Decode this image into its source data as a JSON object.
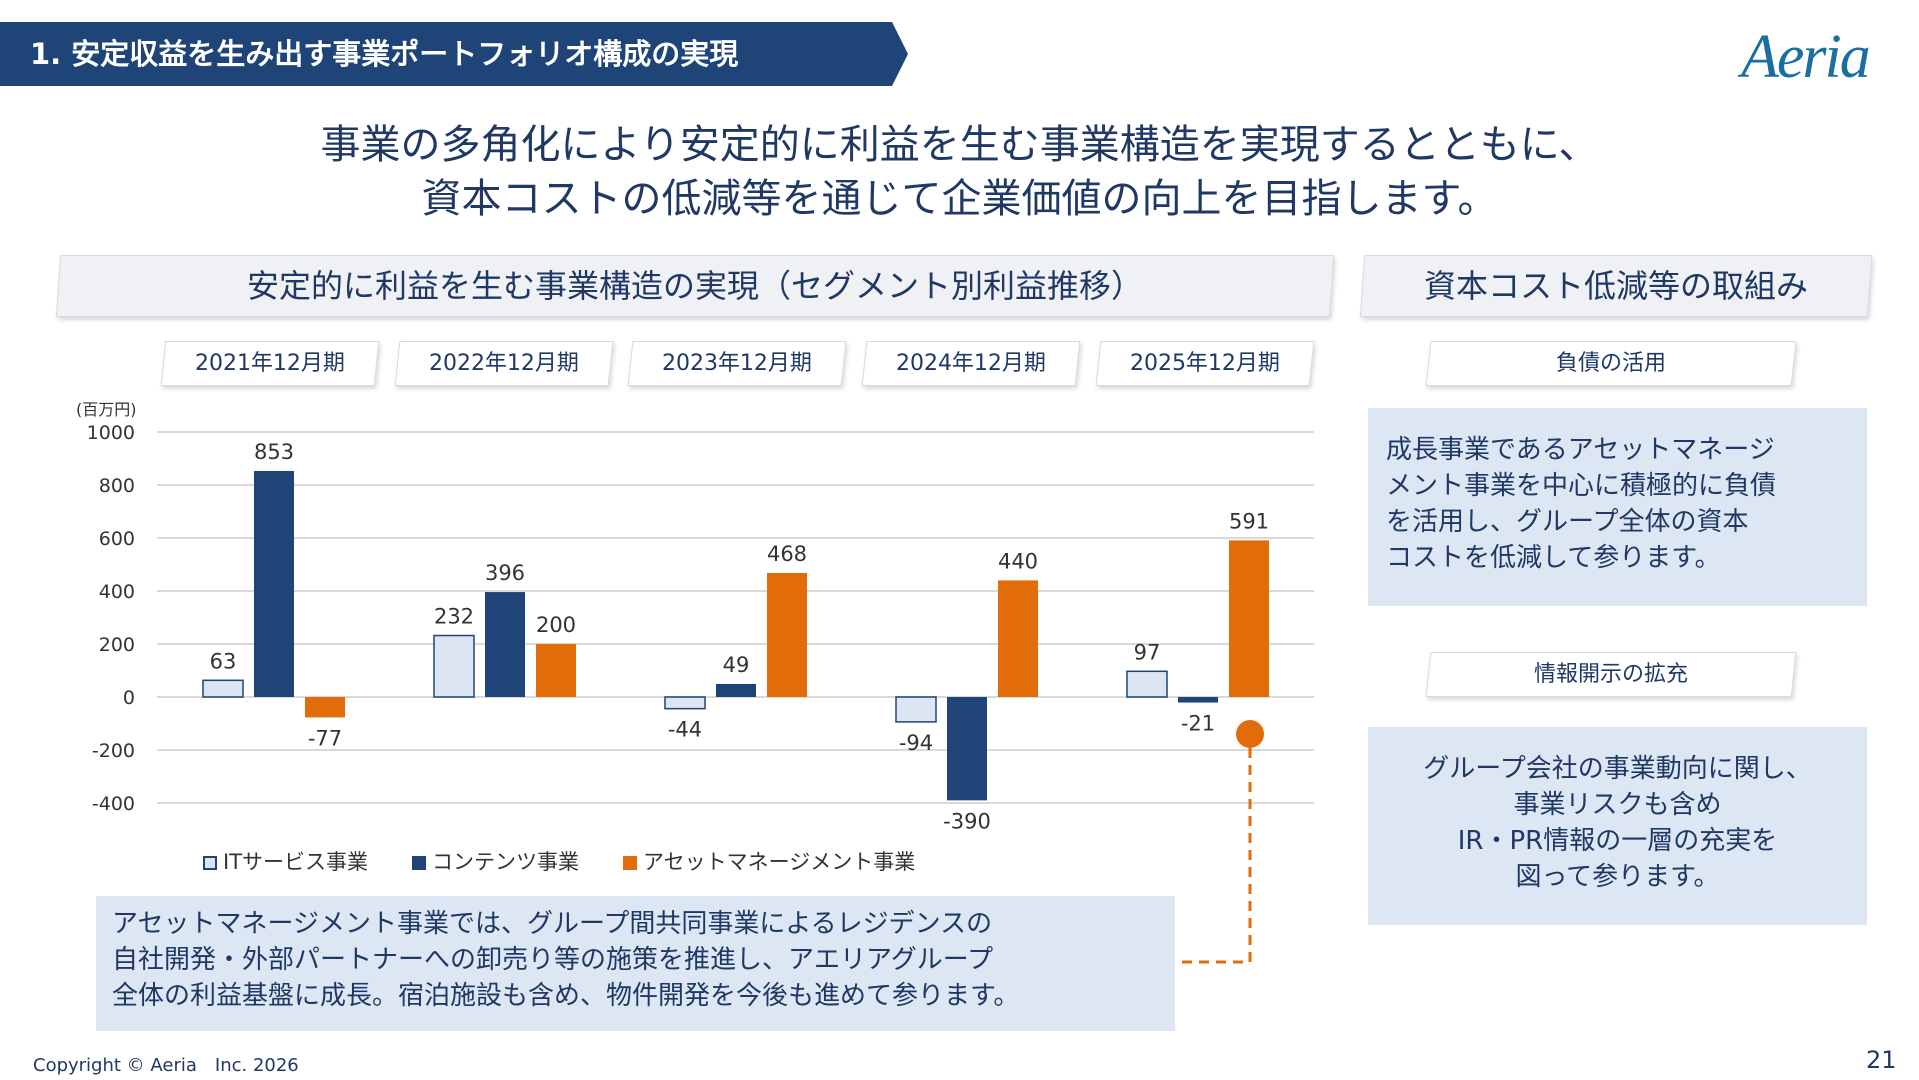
{
  "header": {
    "section_title": "1. 安定収益を生み出す事業ポートフォリオ構成の実現",
    "logo": "Aeria"
  },
  "headline": {
    "line1": "事業の多角化により安定的に利益を生む事業構造を実現するとともに、",
    "line2": "資本コストの低減等を通じて企業価値の向上を目指します。"
  },
  "left_section": {
    "title": "安定的に利益を生む事業構造の実現（セグメント別利益推移）"
  },
  "right_section": {
    "title": "資本コスト低減等の取組み",
    "items": [
      {
        "label": "負債の活用",
        "text": [
          "成長事業であるアセットマネージ",
          "メント事業を中心に積極的に負債",
          "を活用し、グループ全体の資本",
          "コストを低減して参ります。"
        ]
      },
      {
        "label": "情報開示の拡充",
        "text": [
          "グループ会社の事業動向に関し、",
          "事業リスクも含め",
          "IR・PR情報の一層の充実を",
          "図って参ります。"
        ]
      }
    ]
  },
  "chart_data": {
    "type": "bar",
    "categories": [
      "2021年12月期",
      "2022年12月期",
      "2023年12月期",
      "2024年12月期",
      "2025年12月期"
    ],
    "unit_label": "(百万円)",
    "ylim": [
      -400,
      1000
    ],
    "yticks": [
      "1000",
      "800",
      "600",
      "400",
      "200",
      "0",
      "-200",
      "-400"
    ],
    "grid": true,
    "legend_position": "bottom",
    "series": [
      {
        "name": "ITサービス事業",
        "values": [
          63,
          232,
          -44,
          -94,
          97
        ],
        "color": "#dce6f2",
        "border": "#1f4477"
      },
      {
        "name": "コンテンツ事業",
        "values": [
          853,
          396,
          49,
          -390,
          -21
        ],
        "color": "#1f4477"
      },
      {
        "name": "アセットマネージメント事業",
        "values": [
          -77,
          200,
          468,
          440,
          591
        ],
        "color": "#e36c0a"
      }
    ]
  },
  "callout": {
    "text": [
      "アセットマネージメント事業では、グループ間共同事業によるレジデンスの",
      "自社開発・外部パートナーへの卸売り等の施策を推進し、アエリアグループ",
      "全体の利益基盤に成長。宿泊施設も含め、物件開発を今後も進めて参ります。"
    ]
  },
  "footer": {
    "copyright": "Copyright © Aeria　Inc. 2026",
    "page": "21"
  }
}
